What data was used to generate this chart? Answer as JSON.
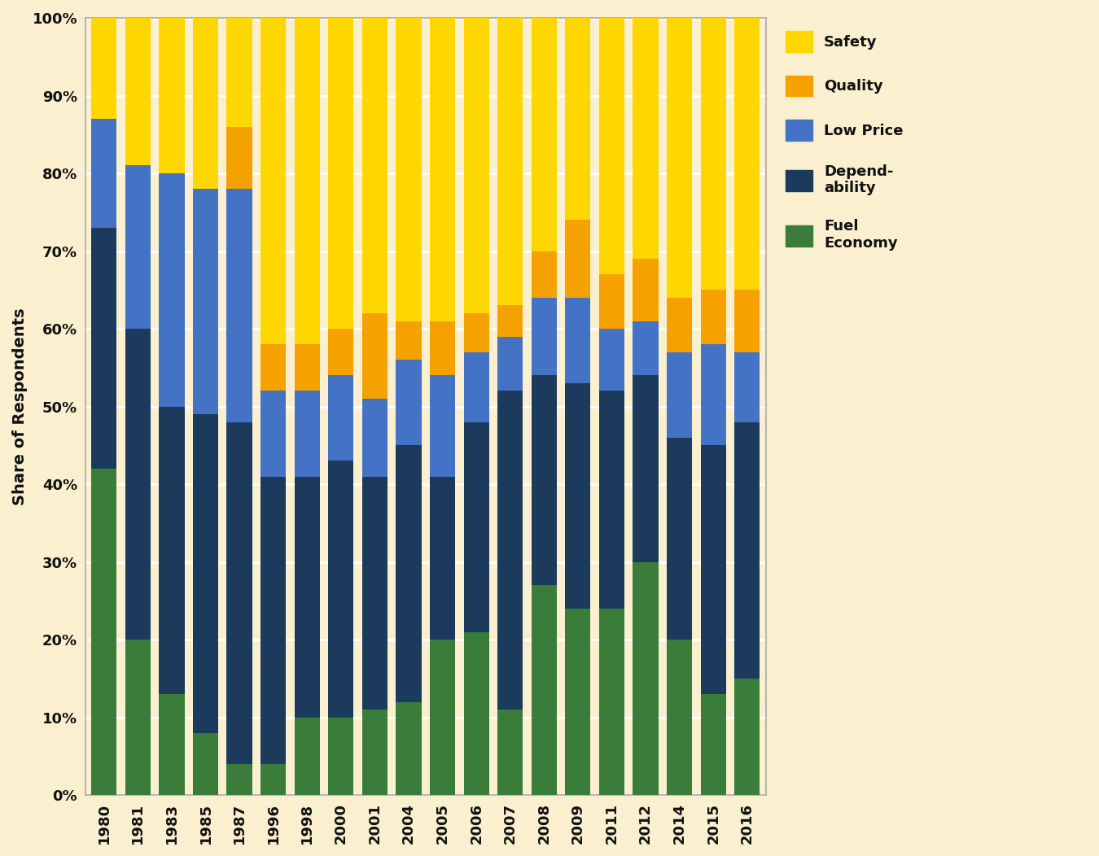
{
  "years": [
    "1980",
    "1981",
    "1983",
    "1985",
    "1987",
    "1996",
    "1998",
    "2000",
    "2001",
    "2004",
    "2005",
    "2006",
    "2007",
    "2008",
    "2009",
    "2011",
    "2012",
    "2014",
    "2015",
    "2016"
  ],
  "fuel_economy": [
    42,
    20,
    13,
    8,
    4,
    4,
    10,
    10,
    11,
    12,
    20,
    21,
    11,
    27,
    24,
    24,
    30,
    20,
    13,
    15
  ],
  "dependability": [
    31,
    40,
    37,
    41,
    44,
    37,
    31,
    33,
    30,
    33,
    21,
    27,
    41,
    27,
    29,
    28,
    24,
    26,
    32,
    33
  ],
  "low_price": [
    14,
    21,
    30,
    29,
    30,
    11,
    11,
    11,
    10,
    11,
    13,
    9,
    7,
    10,
    11,
    8,
    7,
    11,
    13,
    9
  ],
  "quality": [
    0,
    0,
    0,
    0,
    8,
    6,
    6,
    6,
    11,
    5,
    7,
    5,
    4,
    6,
    10,
    7,
    8,
    7,
    7,
    8
  ],
  "safety": [
    13,
    19,
    20,
    22,
    14,
    42,
    42,
    40,
    38,
    39,
    39,
    38,
    37,
    30,
    26,
    33,
    31,
    36,
    35,
    35
  ],
  "colors": {
    "fuel_economy": "#3a7d3a",
    "dependability": "#1b3a5c",
    "low_price": "#4472c4",
    "quality": "#f5a200",
    "safety": "#ffd700"
  },
  "ylabel": "Share of Respondents",
  "background_color": "#faf0d0",
  "plot_background": "#faf0d0",
  "grid_color": "#ffffff",
  "bar_width": 0.75,
  "figsize": [
    13.5,
    10.52
  ],
  "dpi": 100
}
